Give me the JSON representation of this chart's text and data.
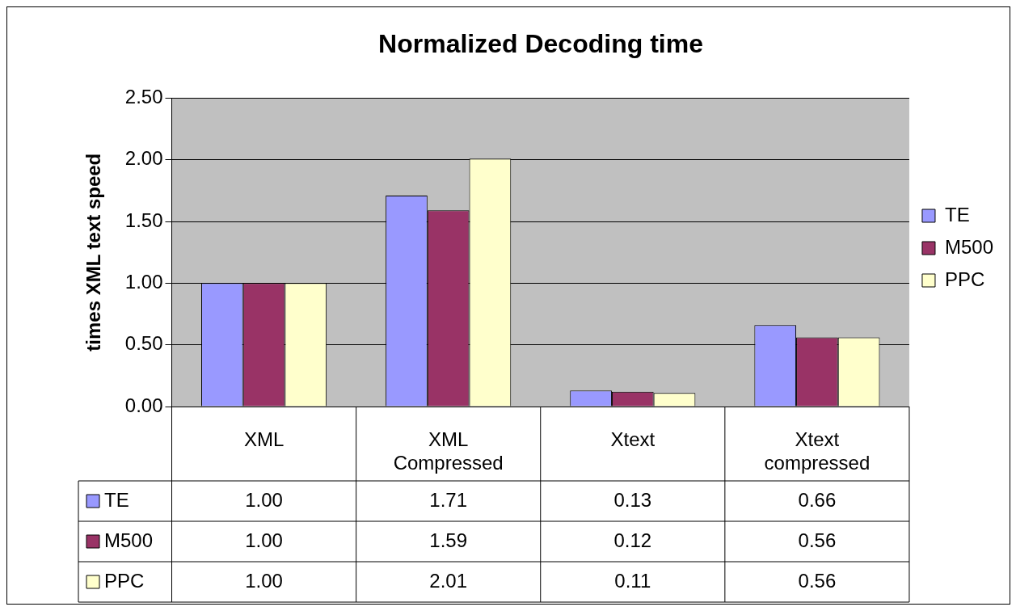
{
  "chart_data": {
    "type": "bar",
    "title": "Normalized Decoding time",
    "ylabel": "times XML text speed",
    "categories": [
      "XML",
      "XML Compressed",
      "Xtext",
      "Xtext compressed"
    ],
    "series": [
      {
        "name": "TE",
        "color": "#9999ff",
        "values": [
          1.0,
          1.71,
          0.13,
          0.66
        ],
        "value_labels": [
          "1.00",
          "1.71",
          "0.13",
          "0.66"
        ]
      },
      {
        "name": "M500",
        "color": "#993366",
        "values": [
          1.0,
          1.59,
          0.12,
          0.56
        ],
        "value_labels": [
          "1.00",
          "1.59",
          "0.12",
          "0.56"
        ]
      },
      {
        "name": "PPC",
        "color": "#ffffcc",
        "values": [
          1.0,
          2.01,
          0.11,
          0.56
        ],
        "value_labels": [
          "1.00",
          "2.01",
          "0.11",
          "0.56"
        ]
      }
    ],
    "ylim": [
      0,
      2.5
    ],
    "yticks": [
      {
        "value": 0,
        "label": "0.00"
      },
      {
        "value": 0.5,
        "label": "0.50"
      },
      {
        "value": 1,
        "label": "1.00"
      },
      {
        "value": 1.5,
        "label": "1.50"
      },
      {
        "value": 2,
        "label": "2.00"
      },
      {
        "value": 2.5,
        "label": "2.50"
      }
    ],
    "grid": "y",
    "legend": "right"
  }
}
